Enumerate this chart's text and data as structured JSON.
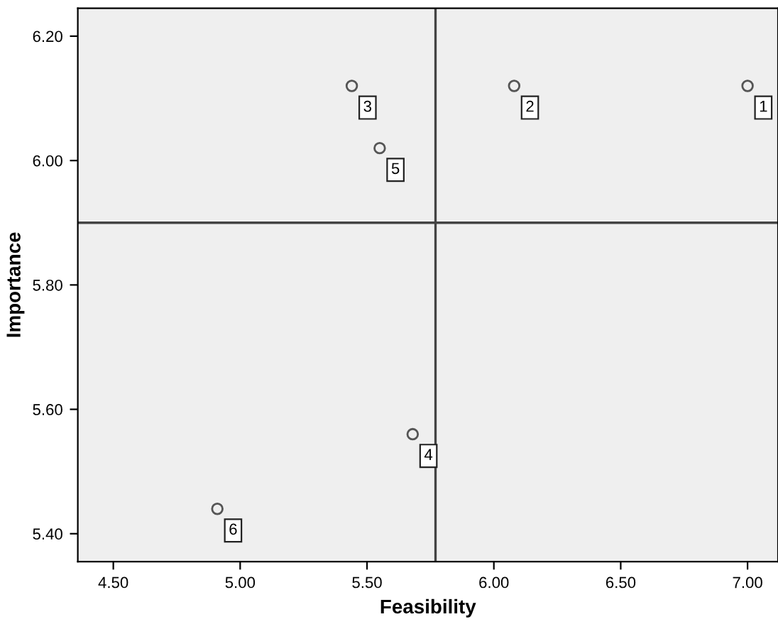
{
  "chart_data": {
    "type": "scatter",
    "xlabel": "Feasibility",
    "ylabel": "Importance",
    "x": [
      7.0,
      6.08,
      5.44,
      5.68,
      5.55,
      4.91
    ],
    "values": [
      6.12,
      6.12,
      6.12,
      5.56,
      6.02,
      5.44
    ],
    "color": "#555555",
    "marker": "circle",
    "annotations": [
      {
        "text": "1",
        "x": 7.0,
        "y": 6.12
      },
      {
        "text": "2",
        "x": 6.08,
        "y": 6.12
      },
      {
        "text": "3",
        "x": 5.44,
        "y": 6.12
      },
      {
        "text": "4",
        "x": 5.68,
        "y": 5.56
      },
      {
        "text": "5",
        "x": 5.55,
        "y": 6.02
      },
      {
        "text": "6",
        "x": 4.91,
        "y": 5.44
      }
    ],
    "ref_lines": [
      {
        "axis": "x",
        "value": 5.77,
        "color": "#444444"
      },
      {
        "axis": "y",
        "value": 5.9,
        "color": "#444444"
      }
    ],
    "xlim": [
      4.36,
      7.12
    ],
    "ylim": [
      5.355,
      6.245
    ],
    "xticks": [
      {
        "value": 4.5,
        "label": "4.50"
      },
      {
        "value": 5.0,
        "label": "5.00"
      },
      {
        "value": 5.5,
        "label": "5.50"
      },
      {
        "value": 6.0,
        "label": "6.00"
      },
      {
        "value": 6.5,
        "label": "6.50"
      },
      {
        "value": 7.0,
        "label": "7.00"
      }
    ],
    "yticks": [
      {
        "value": 5.4,
        "label": "5.40"
      },
      {
        "value": 5.6,
        "label": "5.60"
      },
      {
        "value": 5.8,
        "label": "5.80"
      },
      {
        "value": 6.0,
        "label": "6.00"
      },
      {
        "value": 6.2,
        "label": "6.20"
      }
    ],
    "grid": false,
    "legend": false
  }
}
